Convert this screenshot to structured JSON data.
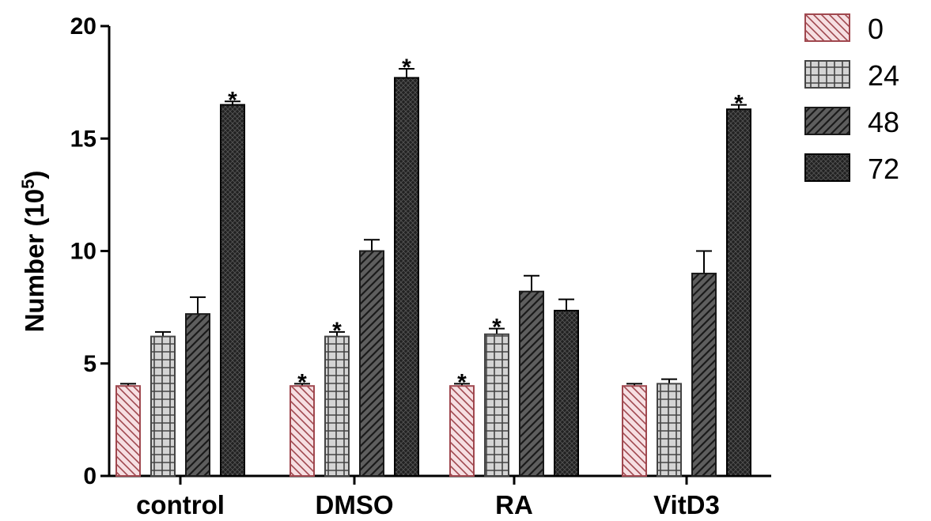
{
  "chart_data": {
    "type": "bar",
    "categories": [
      "control",
      "DMSO",
      "RA",
      "VitD3"
    ],
    "series": [
      {
        "name": "0",
        "values": [
          4.0,
          4.0,
          4.0,
          4.0
        ],
        "errors": [
          0.1,
          0.1,
          0.1,
          0.1
        ],
        "colors": {
          "fill": "#f6dfe2",
          "stroke": "#a0484f"
        }
      },
      {
        "name": "24",
        "values": [
          6.2,
          6.2,
          6.3,
          4.1
        ],
        "errors": [
          0.2,
          0.2,
          0.25,
          0.2
        ],
        "colors": {
          "fill": "#d4d4d4",
          "stroke": "#444444"
        }
      },
      {
        "name": "48",
        "values": [
          7.2,
          10.0,
          8.2,
          9.0
        ],
        "errors": [
          0.75,
          0.5,
          0.7,
          1.0
        ],
        "colors": {
          "fill": "#5e5e5e",
          "stroke": "#1a1a1a"
        }
      },
      {
        "name": "72",
        "values": [
          16.5,
          17.7,
          7.35,
          16.3
        ],
        "errors": [
          0.15,
          0.4,
          0.5,
          0.2
        ],
        "colors": {
          "fill": "#222222",
          "stroke": "#000000"
        }
      }
    ],
    "significance": [
      [
        false,
        true,
        true,
        false
      ],
      [
        false,
        true,
        true,
        false
      ],
      [
        false,
        false,
        false,
        false
      ],
      [
        true,
        true,
        false,
        true
      ]
    ],
    "significance_mark": "*",
    "ylabel_main": "Number (10",
    "ylabel_sup": "5",
    "ylabel_end": ")",
    "ylim": [
      0,
      20
    ],
    "yticks": [
      0,
      5,
      10,
      15,
      20
    ],
    "grid": false,
    "legend_position": "top-right"
  }
}
